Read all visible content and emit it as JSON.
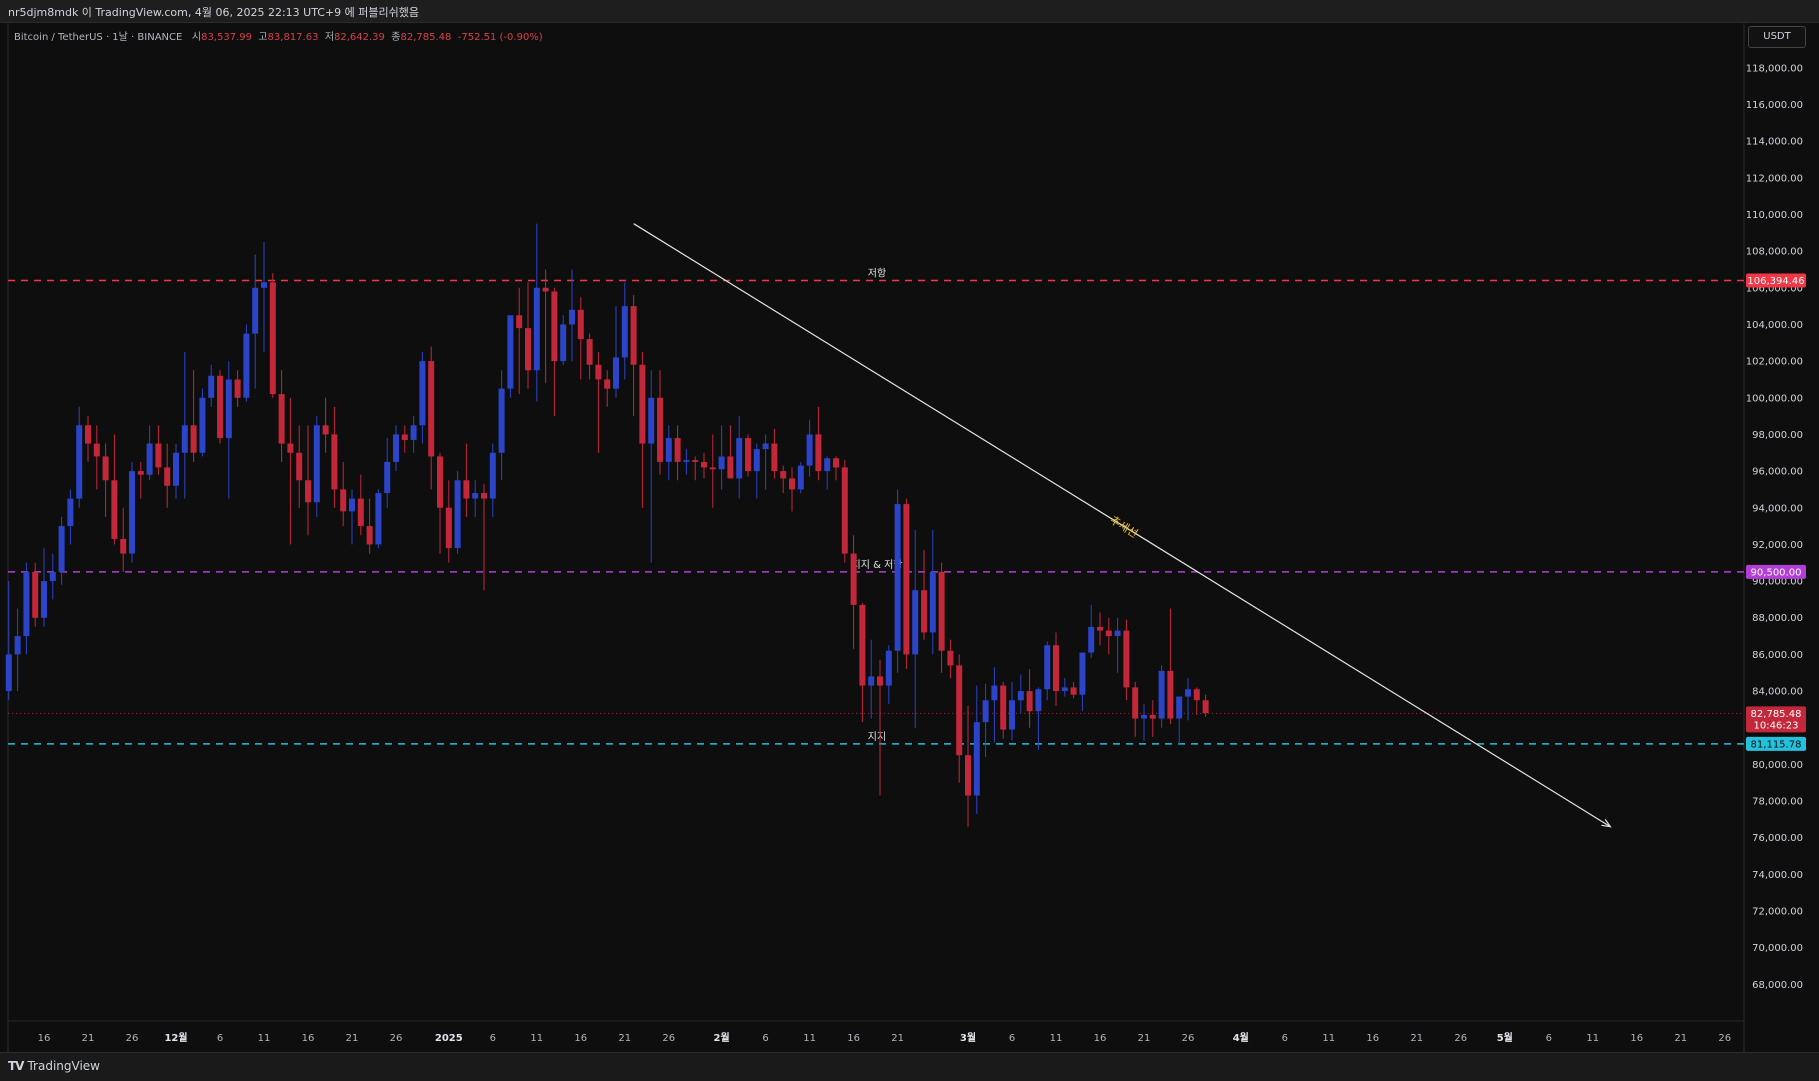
{
  "header": {
    "publish_line": "nr5djm8mdk 이 TradingView.com, 4월 06, 2025 22:13 UTC+9 에 퍼블리쉬했음"
  },
  "legend": {
    "symbol": "Bitcoin / TetherUS · 1날 · BINANCE",
    "open_label": "시",
    "open": "83,537.99",
    "high_label": "고",
    "high": "83,817.63",
    "low_label": "저",
    "low": "82,642.39",
    "close_label": "종",
    "close": "82,785.48",
    "change": "-752.51 (-0.90%)"
  },
  "currency_button": "USDT",
  "footer": {
    "brand": "TradingView"
  },
  "colors": {
    "up": "#2b44c8",
    "down": "#c2283a",
    "resistance": "#f23645",
    "support_resistance": "#b33ed6",
    "support": "#22c1dc",
    "trendline": "#e6e6e6",
    "trend_label": "#f0c419"
  },
  "chart_data": {
    "type": "candlestick",
    "symbol": "Bitcoin / TetherUS",
    "timeframe": "1날",
    "exchange": "BINANCE",
    "y_axis": {
      "ticks": [
        "68,000.00",
        "70,000.00",
        "72,000.00",
        "74,000.00",
        "76,000.00",
        "78,000.00",
        "80,000.00",
        "82,000.00",
        "84,000.00",
        "86,000.00",
        "88,000.00",
        "90,000.00",
        "92,000.00",
        "94,000.00",
        "96,000.00",
        "98,000.00",
        "100,000.00",
        "102,000.00",
        "104,000.00",
        "106,000.00",
        "108,000.00",
        "110,000.00",
        "112,000.00",
        "114,000.00",
        "116,000.00",
        "118,000.00"
      ],
      "tick_values": [
        68000,
        70000,
        72000,
        74000,
        76000,
        78000,
        80000,
        82000,
        84000,
        86000,
        88000,
        90000,
        92000,
        94000,
        96000,
        98000,
        100000,
        102000,
        104000,
        106000,
        108000,
        110000,
        112000,
        114000,
        116000,
        118000
      ],
      "range": [
        66000,
        120500
      ]
    },
    "x_axis": {
      "ticks": [
        "16",
        "21",
        "26",
        "12월",
        "6",
        "11",
        "16",
        "21",
        "26",
        "2025",
        "6",
        "11",
        "16",
        "21",
        "26",
        "2월",
        "6",
        "11",
        "16",
        "21",
        "3월",
        "6",
        "11",
        "16",
        "21",
        "26",
        "4월",
        "6",
        "11",
        "16",
        "21",
        "26",
        "5월",
        "6",
        "11",
        "16",
        "21",
        "26"
      ],
      "tick_days": [
        0,
        5,
        10,
        15,
        20,
        25,
        30,
        35,
        40,
        46,
        51,
        56,
        61,
        66,
        71,
        77,
        82,
        87,
        92,
        97,
        105,
        110,
        115,
        120,
        125,
        130,
        136,
        141,
        146,
        151,
        156,
        161,
        166,
        171,
        176,
        181,
        186,
        191
      ]
    },
    "first_day": "2024-11-14",
    "candles": [
      [
        84000,
        90000,
        83500,
        86000
      ],
      [
        86000,
        88500,
        84000,
        87000
      ],
      [
        87000,
        91000,
        86000,
        90500
      ],
      [
        90500,
        91000,
        87500,
        88000
      ],
      [
        88000,
        91800,
        87500,
        90000
      ],
      [
        90000,
        91500,
        89000,
        90500
      ],
      [
        90500,
        93500,
        89800,
        93000
      ],
      [
        93000,
        95000,
        92000,
        94500
      ],
      [
        94500,
        99500,
        94000,
        98500
      ],
      [
        98500,
        99000,
        96500,
        97500
      ],
      [
        97500,
        98500,
        95000,
        96800
      ],
      [
        96800,
        97500,
        93500,
        95500
      ],
      [
        95500,
        98000,
        92000,
        92300
      ],
      [
        92300,
        94000,
        90500,
        91500
      ],
      [
        91500,
        96500,
        91000,
        96000
      ],
      [
        96000,
        96500,
        94500,
        95800
      ],
      [
        95800,
        98500,
        95500,
        97500
      ],
      [
        97500,
        98500,
        95800,
        96200
      ],
      [
        96200,
        97500,
        94000,
        95200
      ],
      [
        95200,
        97500,
        94500,
        97000
      ],
      [
        97000,
        102500,
        94500,
        98500
      ],
      [
        98500,
        101500,
        96500,
        97000
      ],
      [
        97000,
        100500,
        96800,
        100000
      ],
      [
        100000,
        101800,
        99500,
        101200
      ],
      [
        101200,
        101500,
        97500,
        97800
      ],
      [
        97800,
        102000,
        94500,
        101000
      ],
      [
        101000,
        101500,
        99500,
        100000
      ],
      [
        100000,
        104000,
        99800,
        103500
      ],
      [
        103500,
        107800,
        100500,
        106000
      ],
      [
        106000,
        108500,
        102500,
        106300
      ],
      [
        106300,
        106800,
        100000,
        100200
      ],
      [
        100200,
        101500,
        96500,
        97500
      ],
      [
        97500,
        100000,
        92000,
        97000
      ],
      [
        97000,
        98500,
        94000,
        95500
      ],
      [
        95500,
        98500,
        92500,
        94300
      ],
      [
        94300,
        99000,
        93500,
        98500
      ],
      [
        98500,
        100000,
        97000,
        98000
      ],
      [
        98000,
        99500,
        94000,
        95000
      ],
      [
        95000,
        96500,
        93000,
        93800
      ],
      [
        93800,
        95000,
        92000,
        94500
      ],
      [
        94500,
        95800,
        92500,
        93000
      ],
      [
        93000,
        94500,
        91500,
        92000
      ],
      [
        92000,
        95000,
        91800,
        94800
      ],
      [
        94800,
        97800,
        94000,
        96500
      ],
      [
        96500,
        98500,
        96000,
        98000
      ],
      [
        98000,
        98500,
        97000,
        97700
      ],
      [
        97700,
        99000,
        97000,
        98500
      ],
      [
        98500,
        102500,
        97500,
        102000
      ],
      [
        102000,
        102800,
        95000,
        96800
      ],
      [
        96800,
        97000,
        91500,
        94000
      ],
      [
        94000,
        95500,
        91000,
        91800
      ],
      [
        91800,
        96000,
        91500,
        95500
      ],
      [
        95500,
        97500,
        93500,
        94500
      ],
      [
        94500,
        95500,
        93500,
        94800
      ],
      [
        94800,
        95300,
        89500,
        94500
      ],
      [
        94500,
        97500,
        93500,
        97000
      ],
      [
        97000,
        101500,
        95500,
        100500
      ],
      [
        100500,
        104000,
        100000,
        104500
      ],
      [
        104500,
        106000,
        100200,
        103800
      ],
      [
        103800,
        106300,
        100500,
        101500
      ],
      [
        101500,
        109500,
        99800,
        106000
      ],
      [
        106000,
        107000,
        100800,
        105800
      ],
      [
        105800,
        106000,
        99000,
        102000
      ],
      [
        102000,
        104500,
        101800,
        104000
      ],
      [
        104000,
        107000,
        102000,
        104800
      ],
      [
        104800,
        105500,
        101000,
        103200
      ],
      [
        103200,
        103500,
        101000,
        101800
      ],
      [
        101800,
        102500,
        97000,
        101000
      ],
      [
        101000,
        101500,
        99500,
        100500
      ],
      [
        100500,
        105000,
        100000,
        102200
      ],
      [
        102200,
        106300,
        101000,
        105000
      ],
      [
        105000,
        105600,
        99000,
        101800
      ],
      [
        101800,
        102500,
        94000,
        97500
      ],
      [
        97500,
        101500,
        91000,
        100000
      ],
      [
        100000,
        101500,
        95800,
        96500
      ],
      [
        96500,
        98500,
        95500,
        97800
      ],
      [
        97800,
        98500,
        95500,
        96500
      ],
      [
        96500,
        97200,
        95800,
        96600
      ],
      [
        96600,
        96800,
        95500,
        96500
      ],
      [
        96500,
        97000,
        95600,
        96200
      ],
      [
        96200,
        98000,
        94000,
        96100
      ],
      [
        96100,
        98500,
        95000,
        96800
      ],
      [
        96800,
        98500,
        95800,
        95600
      ],
      [
        95600,
        99000,
        94500,
        97800
      ],
      [
        97800,
        98000,
        95700,
        96000
      ],
      [
        96000,
        97500,
        94500,
        97200
      ],
      [
        97200,
        98000,
        95000,
        97500
      ],
      [
        97500,
        98300,
        95600,
        96000
      ],
      [
        96000,
        96300,
        94800,
        95600
      ],
      [
        95600,
        96200,
        93800,
        95000
      ],
      [
        95000,
        96500,
        94800,
        96300
      ],
      [
        96300,
        98800,
        95700,
        98000
      ],
      [
        98000,
        99500,
        95500,
        96000
      ],
      [
        96000,
        96800,
        95000,
        96700
      ],
      [
        96700,
        96800,
        95500,
        96200
      ],
      [
        96200,
        96600,
        91000,
        91500
      ],
      [
        91500,
        92500,
        86300,
        88700
      ],
      [
        88700,
        88800,
        82300,
        84300
      ],
      [
        84300,
        86800,
        82500,
        84800
      ],
      [
        84800,
        85700,
        78300,
        84300
      ],
      [
        84300,
        86500,
        83300,
        86200
      ],
      [
        86200,
        95000,
        85000,
        94200
      ],
      [
        94200,
        94500,
        85200,
        86000
      ],
      [
        86000,
        92800,
        82000,
        89500
      ],
      [
        89500,
        91700,
        86800,
        87200
      ],
      [
        87200,
        92800,
        86000,
        90500
      ],
      [
        90500,
        91000,
        85000,
        86200
      ],
      [
        86200,
        86800,
        84700,
        85400
      ],
      [
        85400,
        86000,
        79000,
        80500
      ],
      [
        80500,
        83200,
        76600,
        78300
      ],
      [
        78300,
        84300,
        77300,
        82300
      ],
      [
        82300,
        84400,
        80400,
        83500
      ],
      [
        83500,
        85300,
        81200,
        84300
      ],
      [
        84300,
        84500,
        81400,
        81900
      ],
      [
        81900,
        84500,
        81300,
        83500
      ],
      [
        83500,
        84900,
        82800,
        84000
      ],
      [
        84000,
        85200,
        82000,
        82900
      ],
      [
        82900,
        84200,
        80800,
        84100
      ],
      [
        84100,
        86700,
        83500,
        86500
      ],
      [
        86500,
        87200,
        83200,
        84000
      ],
      [
        84000,
        84700,
        83700,
        84200
      ],
      [
        84200,
        84500,
        83600,
        83800
      ],
      [
        83800,
        86100,
        82900,
        86100
      ],
      [
        86100,
        88700,
        85800,
        87500
      ],
      [
        87500,
        88300,
        86500,
        87300
      ],
      [
        87300,
        88000,
        86000,
        87000
      ],
      [
        87000,
        88000,
        85000,
        87300
      ],
      [
        87300,
        87900,
        83500,
        84200
      ],
      [
        84200,
        84500,
        81500,
        82500
      ],
      [
        82500,
        83300,
        81300,
        82700
      ],
      [
        82700,
        83500,
        81500,
        82500
      ],
      [
        82500,
        85400,
        82000,
        85100
      ],
      [
        85100,
        88500,
        82200,
        82500
      ],
      [
        82500,
        83400,
        81100,
        83700
      ],
      [
        83700,
        84700,
        82400,
        84100
      ],
      [
        84100,
        84200,
        82700,
        83500
      ],
      [
        83500,
        83800,
        82600,
        82800
      ]
    ],
    "levels": [
      {
        "name": "resistance",
        "label": "저항",
        "value": 106394.46,
        "price_tag": "106,394.46",
        "style": "dashed"
      },
      {
        "name": "support-resistance",
        "label": "지지 & 저항",
        "value": 90500.0,
        "price_tag": "90,500.00",
        "style": "dashed"
      },
      {
        "name": "support",
        "label": "지지",
        "value": 81115.78,
        "price_tag": "81,115.78",
        "style": "dashed"
      }
    ],
    "last_price": {
      "value": 82785.48,
      "price_tag": "82,785.48",
      "countdown": "10:46:23"
    },
    "trendline": {
      "label": "추세선",
      "start": {
        "day": 67,
        "price": 109500
      },
      "end": {
        "day": 178,
        "price": 76600
      }
    }
  }
}
